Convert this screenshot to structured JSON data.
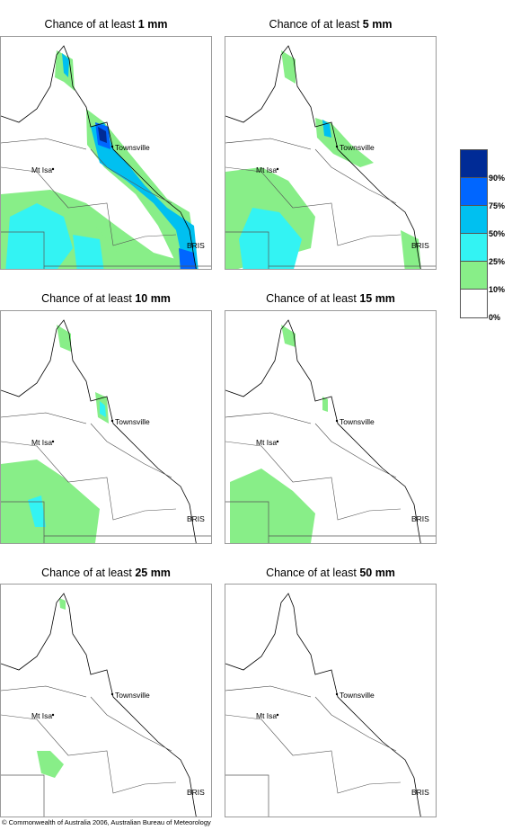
{
  "panels": [
    {
      "title_prefix": "Chance of at least ",
      "amount": "1 mm"
    },
    {
      "title_prefix": "Chance of at least ",
      "amount": "5 mm"
    },
    {
      "title_prefix": "Chance of at least ",
      "amount": "10 mm"
    },
    {
      "title_prefix": "Chance of at least ",
      "amount": "15 mm"
    },
    {
      "title_prefix": "Chance of at least ",
      "amount": "25 mm"
    },
    {
      "title_prefix": "Chance of at least ",
      "amount": "50 mm"
    }
  ],
  "places": {
    "townsville": "Townsville",
    "mt_isa": "Mt Isa",
    "brisbane": "BRIS"
  },
  "legend": {
    "labels": [
      "90%",
      "75%",
      "50%",
      "25%",
      "10%",
      "0%"
    ],
    "colors": [
      "#002b96",
      "#0066ff",
      "#00c0f0",
      "#33f3f3",
      "#88ee88",
      "#ffffff"
    ]
  },
  "copyright": "© Commonwealth of Australia 2006, Australian Bureau of Meteorology"
}
